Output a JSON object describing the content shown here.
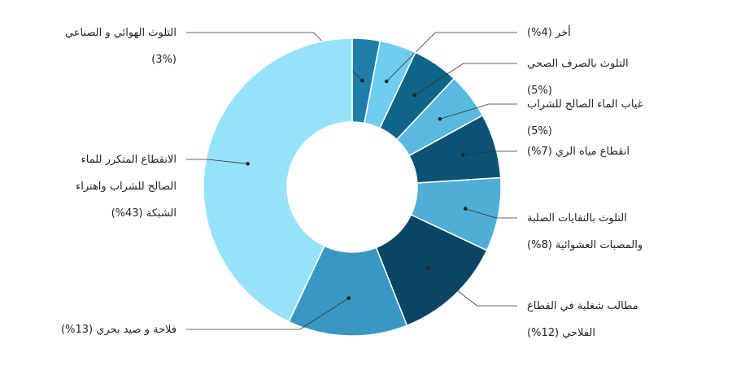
{
  "chart_data": {
    "type": "pie",
    "donut": true,
    "legend": "none",
    "slices": [
      {
        "label": [
          "التلوث الهوائي و الصناعي",
          "(3%)"
        ],
        "value": 3,
        "color": "#1f7ea8"
      },
      {
        "label": [
          "أخر (4%)"
        ],
        "value": 4,
        "color": "#6fcdf0"
      },
      {
        "label": [
          "التلوث بالصرف الصحي",
          "(5%)"
        ],
        "value": 5,
        "color": "#0f6588"
      },
      {
        "label": [
          "غياب الماء الصالح للشراب",
          "(5%)"
        ],
        "value": 5,
        "color": "#5ab9df"
      },
      {
        "label": [
          "انقطاع مياه الري (7%)"
        ],
        "value": 7,
        "color": "#0d5274"
      },
      {
        "label": [
          "التلوث بالنفايات الصلبة",
          "والمصبات العشوائية (8%)"
        ],
        "value": 8,
        "color": "#4fadd6"
      },
      {
        "label": [
          "مطالب شغلية في القطاع",
          "الفلاحي (12%)"
        ],
        "value": 12,
        "color": "#0a4566"
      },
      {
        "label": [
          "فلاحة و صيد بحري (13%)"
        ],
        "value": 13,
        "color": "#3a97c2"
      },
      {
        "label": [
          "الانقطاع المتكرر للماء",
          "الصالح للشراب واهتراء",
          "الشبكة (43%)"
        ],
        "value": 43,
        "color": "#97e2fb"
      }
    ]
  }
}
